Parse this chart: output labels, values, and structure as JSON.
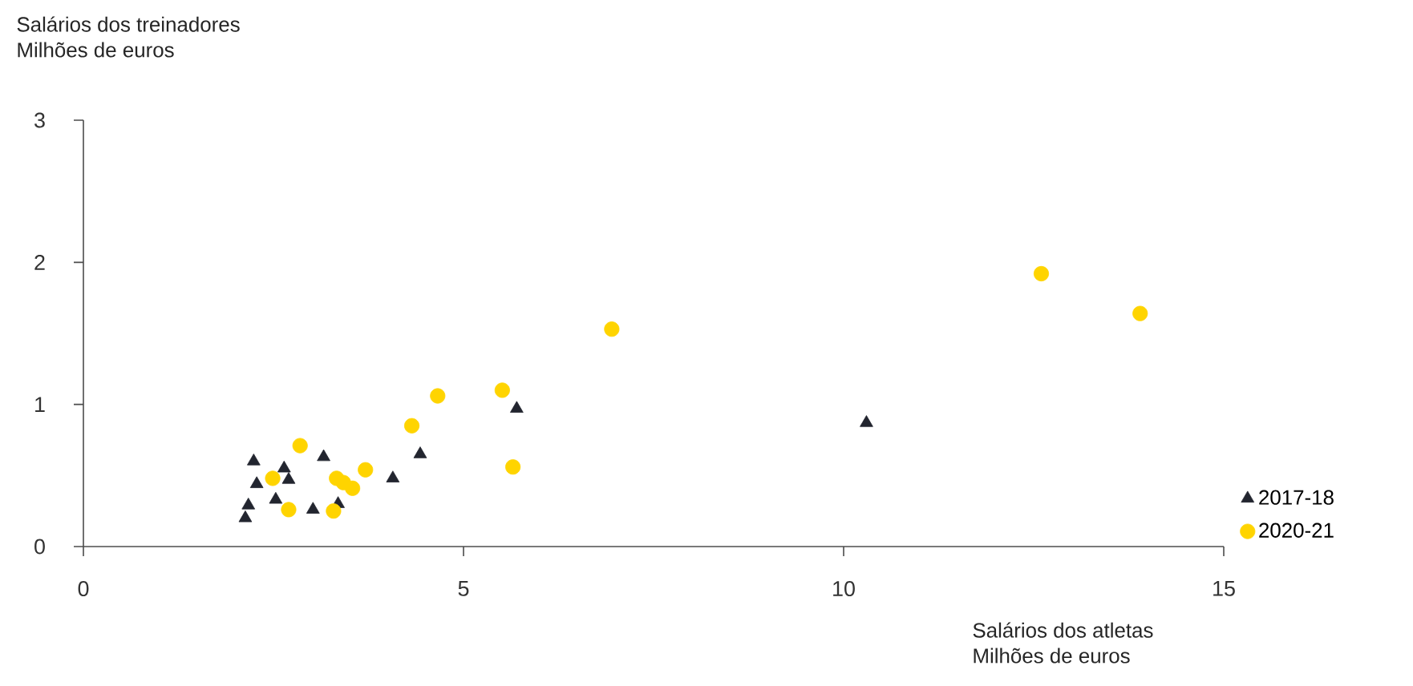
{
  "chart_data": {
    "type": "scatter",
    "ylabel": "Salários dos treinadores\nMilhões de euros",
    "xlabel": "Salários dos atletas\nMilhões de euros",
    "xlim": [
      0,
      15
    ],
    "ylim": [
      0,
      3
    ],
    "xticks": [
      0,
      5,
      10,
      15
    ],
    "yticks": [
      0,
      1,
      2,
      3
    ],
    "legend": "right",
    "grid": false,
    "series": [
      {
        "name": "2017-18",
        "color": "#22252f",
        "marker": "triangle",
        "x": [
          2.13,
          2.17,
          2.24,
          2.28,
          2.53,
          2.64,
          2.7,
          3.02,
          3.16,
          3.35,
          4.07,
          4.43,
          5.7,
          10.3
        ],
        "values": [
          0.2,
          0.29,
          0.6,
          0.44,
          0.33,
          0.55,
          0.47,
          0.26,
          0.63,
          0.3,
          0.48,
          0.65,
          0.97,
          0.87
        ]
      },
      {
        "name": "2020-21",
        "color": "#ffd400",
        "marker": "circle",
        "x": [
          2.49,
          2.7,
          2.85,
          3.29,
          3.33,
          3.42,
          3.54,
          3.71,
          4.32,
          4.66,
          5.51,
          5.65,
          6.95,
          12.6,
          13.9
        ],
        "values": [
          0.48,
          0.26,
          0.71,
          0.25,
          0.48,
          0.45,
          0.41,
          0.54,
          0.85,
          1.06,
          1.1,
          0.56,
          1.53,
          1.92,
          1.64
        ]
      }
    ]
  }
}
